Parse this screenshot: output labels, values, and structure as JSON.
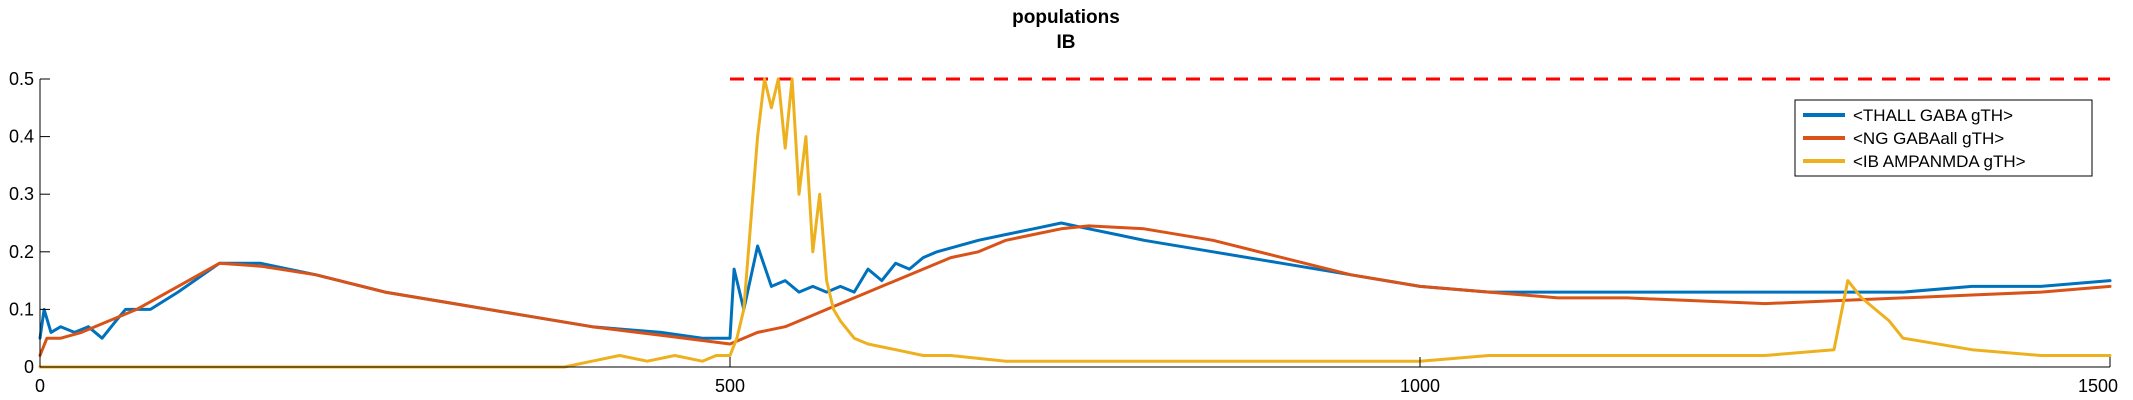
{
  "chart_data": {
    "type": "line",
    "title": [
      "populations",
      "IB"
    ],
    "xlabel": "",
    "ylabel": "",
    "xlim": [
      0,
      1500
    ],
    "ylim": [
      0,
      0.5
    ],
    "xticks": [
      0,
      500,
      1000,
      1500
    ],
    "xtick_labels": [
      "0",
      "500",
      "1000",
      "1500"
    ],
    "yticks": [
      0,
      0.1,
      0.2,
      0.3,
      0.4,
      0.5
    ],
    "ytick_labels": [
      "0",
      "0.1",
      "0.2",
      "0.3",
      "0.4",
      "0.5"
    ],
    "grid": false,
    "legend_position": "top-right",
    "reference_line": {
      "y": 0.5,
      "x_start": 500,
      "x_end": 1500,
      "color": "#ff0000",
      "style": "dashed"
    },
    "series": [
      {
        "name": "<THALL GABA gTH>",
        "color": "#0072bd",
        "x": [
          0,
          3,
          8,
          15,
          25,
          35,
          45,
          55,
          62,
          70,
          80,
          100,
          130,
          160,
          200,
          250,
          300,
          350,
          400,
          450,
          480,
          500,
          503,
          510,
          520,
          530,
          540,
          550,
          560,
          570,
          580,
          590,
          600,
          610,
          620,
          630,
          640,
          650,
          680,
          700,
          720,
          740,
          760,
          780,
          800,
          850,
          900,
          950,
          1000,
          1050,
          1100,
          1150,
          1200,
          1250,
          1300,
          1350,
          1400,
          1450,
          1500
        ],
        "y": [
          0.05,
          0.1,
          0.06,
          0.07,
          0.06,
          0.07,
          0.05,
          0.08,
          0.1,
          0.1,
          0.1,
          0.13,
          0.18,
          0.18,
          0.16,
          0.13,
          0.11,
          0.09,
          0.07,
          0.06,
          0.05,
          0.05,
          0.17,
          0.1,
          0.21,
          0.14,
          0.15,
          0.13,
          0.14,
          0.13,
          0.14,
          0.13,
          0.17,
          0.15,
          0.18,
          0.17,
          0.19,
          0.2,
          0.22,
          0.23,
          0.24,
          0.25,
          0.24,
          0.23,
          0.22,
          0.2,
          0.18,
          0.16,
          0.14,
          0.13,
          0.13,
          0.13,
          0.13,
          0.13,
          0.13,
          0.13,
          0.14,
          0.14,
          0.15
        ]
      },
      {
        "name": "<NG GABAall gTH>",
        "color": "#d95319",
        "x": [
          0,
          5,
          15,
          30,
          50,
          70,
          100,
          130,
          160,
          200,
          250,
          300,
          350,
          400,
          450,
          500,
          520,
          540,
          560,
          580,
          600,
          620,
          640,
          660,
          680,
          700,
          720,
          740,
          760,
          800,
          850,
          900,
          950,
          1000,
          1050,
          1100,
          1150,
          1200,
          1250,
          1300,
          1350,
          1400,
          1450,
          1500
        ],
        "y": [
          0.02,
          0.05,
          0.05,
          0.06,
          0.08,
          0.1,
          0.14,
          0.18,
          0.175,
          0.16,
          0.13,
          0.11,
          0.09,
          0.07,
          0.055,
          0.04,
          0.06,
          0.07,
          0.09,
          0.11,
          0.13,
          0.15,
          0.17,
          0.19,
          0.2,
          0.22,
          0.23,
          0.24,
          0.245,
          0.24,
          0.22,
          0.19,
          0.16,
          0.14,
          0.13,
          0.12,
          0.12,
          0.115,
          0.11,
          0.115,
          0.12,
          0.125,
          0.13,
          0.14
        ]
      },
      {
        "name": "<IB AMPANMDA gTH>",
        "color": "#edb120",
        "x": [
          0,
          100,
          200,
          300,
          380,
          400,
          420,
          440,
          460,
          480,
          490,
          500,
          505,
          510,
          515,
          520,
          525,
          530,
          535,
          540,
          545,
          550,
          555,
          560,
          565,
          570,
          575,
          580,
          590,
          600,
          620,
          640,
          660,
          700,
          800,
          900,
          1000,
          1050,
          1100,
          1150,
          1200,
          1250,
          1300,
          1310,
          1320,
          1330,
          1340,
          1350,
          1400,
          1450,
          1500
        ],
        "y": [
          0,
          0,
          0,
          0,
          0,
          0.01,
          0.02,
          0.01,
          0.02,
          0.01,
          0.02,
          0.02,
          0.05,
          0.1,
          0.25,
          0.4,
          0.5,
          0.45,
          0.5,
          0.38,
          0.5,
          0.3,
          0.4,
          0.2,
          0.3,
          0.15,
          0.1,
          0.08,
          0.05,
          0.04,
          0.03,
          0.02,
          0.02,
          0.01,
          0.01,
          0.01,
          0.01,
          0.02,
          0.02,
          0.02,
          0.02,
          0.02,
          0.03,
          0.15,
          0.12,
          0.1,
          0.08,
          0.05,
          0.03,
          0.02,
          0.02
        ]
      }
    ]
  }
}
